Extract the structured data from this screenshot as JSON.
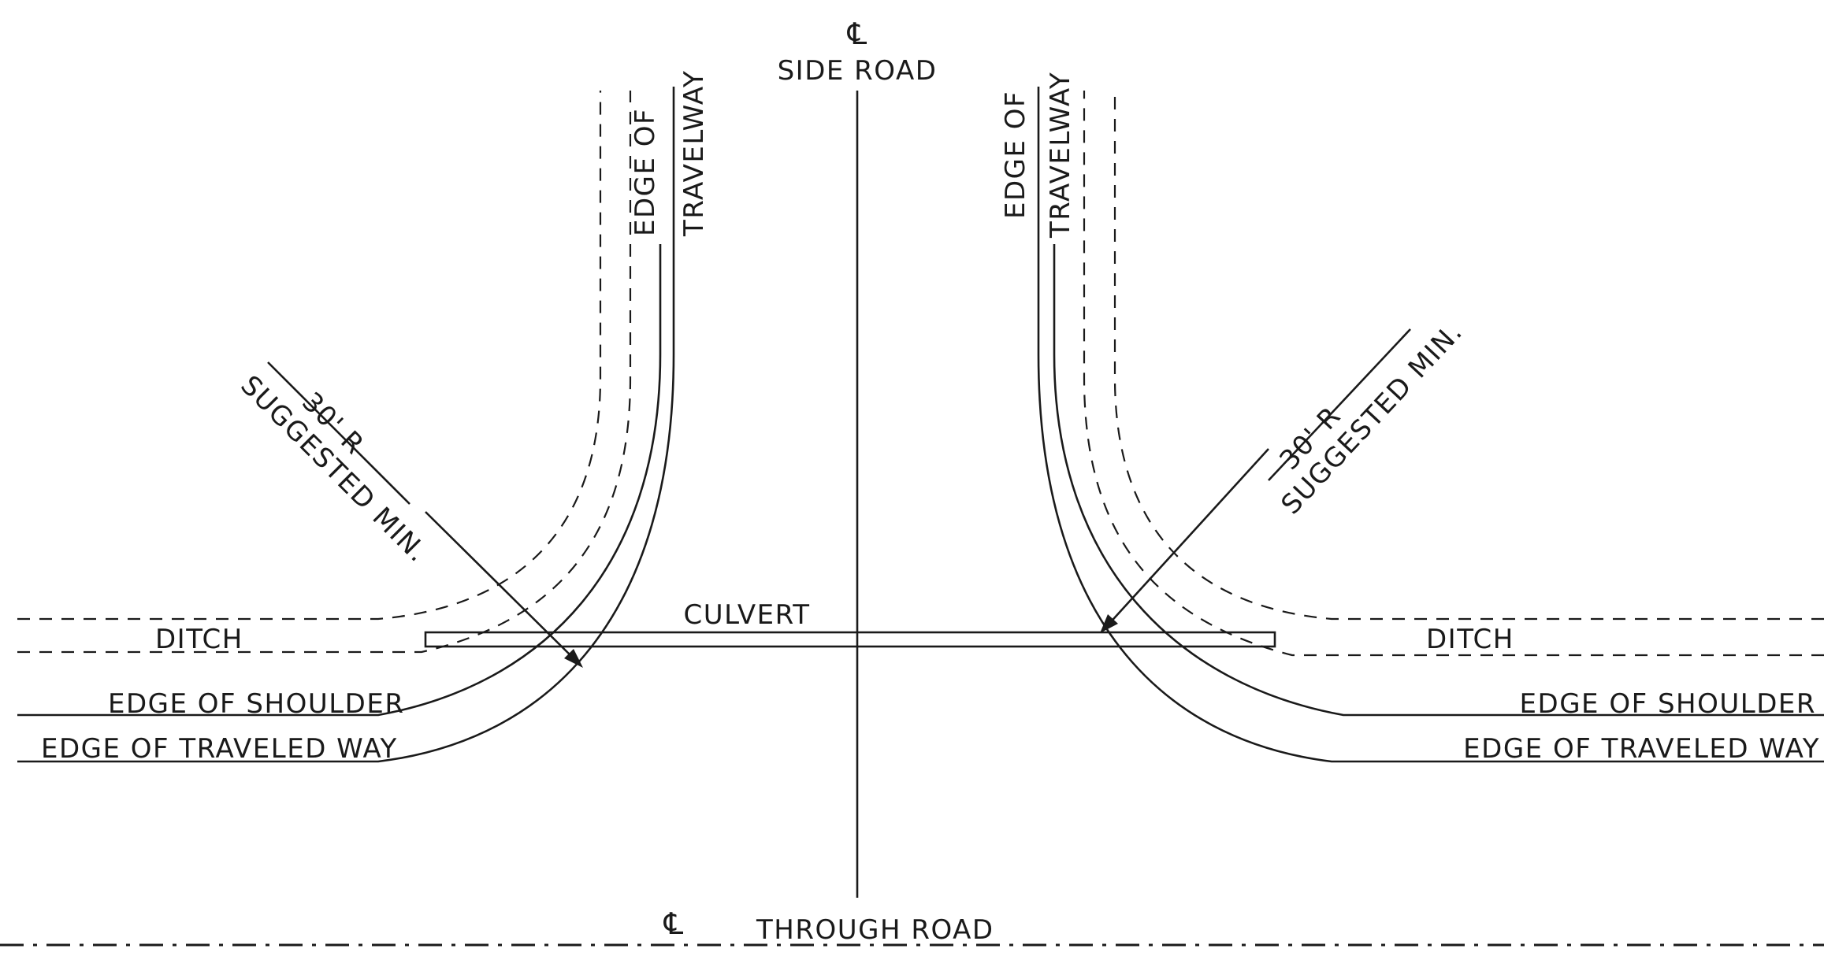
{
  "labels": {
    "centerline_symbol": "℄",
    "side_road": "SIDE ROAD",
    "through_road": "THROUGH ROAD",
    "edge_of_travelway_line1": "EDGE OF",
    "edge_of_travelway_line2": "TRAVELWAY",
    "radius_line1": "30' R",
    "radius_line2": "SUGGESTED MIN.",
    "culvert": "CULVERT",
    "ditch": "DITCH",
    "edge_of_shoulder": "EDGE OF SHOULDER",
    "edge_of_traveled_way": "EDGE OF TRAVELED WAY"
  }
}
